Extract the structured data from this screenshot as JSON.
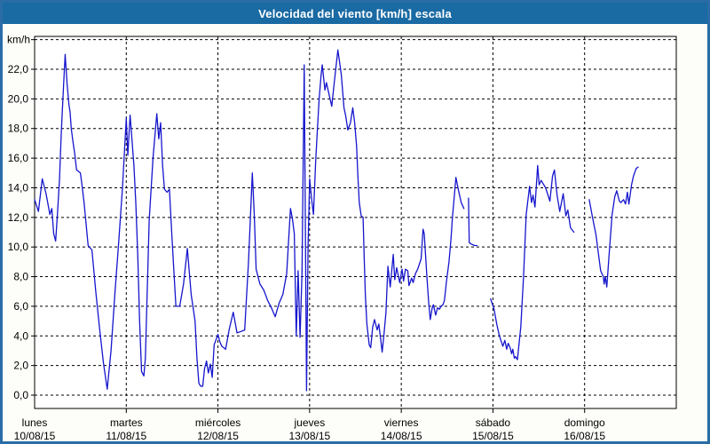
{
  "window": {
    "title": "Velocidad del viento [km/h] escala"
  },
  "colors": {
    "header_bg": "#1a6aa3",
    "frame_border": "#2a6da6",
    "plot_bg": "#ffffff",
    "plot_frame": "#000000",
    "grid": "#000000",
    "line": "#1515cd",
    "text": "#000000",
    "title_text": "#ffffff"
  },
  "chart_data": {
    "type": "line",
    "title": "Velocidad del viento [km/h] escala",
    "ylabel": "km/h",
    "grid": "dashed",
    "legend_position": "none",
    "y_axis": {
      "min": 0,
      "max": 24,
      "tick_step": 2,
      "tick_labels": [
        "0,0",
        "2,0",
        "4,0",
        "6,0",
        "8,0",
        "10,0",
        "12,0",
        "14,0",
        "16,0",
        "18,0",
        "20,0",
        "22,0"
      ],
      "unit_label": "km/h"
    },
    "x_axis": {
      "hours_per_day": 24,
      "days": [
        {
          "name": "lunes",
          "date": "10/08/15"
        },
        {
          "name": "martes",
          "date": "11/08/15"
        },
        {
          "name": "miércoles",
          "date": "12/08/15"
        },
        {
          "name": "jueves",
          "date": "13/08/15"
        },
        {
          "name": "viernes",
          "date": "14/08/15"
        },
        {
          "name": "sábado",
          "date": "15/08/15"
        },
        {
          "name": "domingo",
          "date": "16/08/15"
        }
      ]
    },
    "series": [
      {
        "name": "Velocidad del viento",
        "unit": "km/h",
        "points_hours_kmh": [
          [
            0,
            13.2
          ],
          [
            1,
            12.4
          ],
          [
            2,
            14.6
          ],
          [
            3,
            13.6
          ],
          [
            4,
            12.2
          ],
          [
            4.5,
            12.6
          ],
          [
            5,
            10.9
          ],
          [
            5.5,
            10.4
          ],
          [
            6,
            12.3
          ],
          [
            6.5,
            14.5
          ],
          [
            7,
            17.8
          ],
          [
            7.5,
            20.5
          ],
          [
            8,
            23.0
          ],
          [
            8.5,
            21.0
          ],
          [
            9,
            19.6
          ],
          [
            9.3,
            19.1
          ],
          [
            9.6,
            18.0
          ],
          [
            10,
            17.2
          ],
          [
            10.5,
            16.3
          ],
          [
            11,
            15.2
          ],
          [
            12,
            15.0
          ],
          [
            12.5,
            14.0
          ],
          [
            13,
            12.9
          ],
          [
            13.5,
            11.5
          ],
          [
            14,
            10.1
          ],
          [
            15,
            9.8
          ],
          [
            16,
            7.0
          ],
          [
            17,
            4.5
          ],
          [
            18,
            2.2
          ],
          [
            19,
            0.4
          ],
          [
            20,
            3.0
          ],
          [
            21,
            6.8
          ],
          [
            22,
            10.3
          ],
          [
            23,
            14.0
          ],
          [
            24,
            18.7
          ],
          [
            24.4,
            16.2
          ],
          [
            25,
            18.9
          ],
          [
            26,
            15.5
          ],
          [
            26.5,
            13.0
          ],
          [
            27,
            9.5
          ],
          [
            27.5,
            5.0
          ],
          [
            28,
            1.6
          ],
          [
            28.6,
            1.3
          ],
          [
            29,
            2.5
          ],
          [
            30,
            11.8
          ],
          [
            31,
            16.0
          ],
          [
            32,
            19.0
          ],
          [
            32.5,
            17.3
          ],
          [
            33,
            18.4
          ],
          [
            33.5,
            15.5
          ],
          [
            34,
            13.9
          ],
          [
            34.7,
            13.7
          ],
          [
            35.3,
            13.9
          ],
          [
            36,
            10.5
          ],
          [
            37,
            6.0
          ],
          [
            38,
            6.0
          ],
          [
            39,
            7.5
          ],
          [
            40,
            9.9
          ],
          [
            41,
            6.8
          ],
          [
            42,
            5.0
          ],
          [
            42.5,
            2.5
          ],
          [
            43,
            0.8
          ],
          [
            43.5,
            0.6
          ],
          [
            44,
            0.6
          ],
          [
            44.5,
            1.8
          ],
          [
            45,
            2.3
          ],
          [
            45.5,
            1.5
          ],
          [
            46,
            2.1
          ],
          [
            46.5,
            1.2
          ],
          [
            47,
            3.4
          ],
          [
            48,
            4.1
          ],
          [
            48.5,
            3.6
          ],
          [
            49,
            3.3
          ],
          [
            50,
            3.1
          ],
          [
            51,
            4.5
          ],
          [
            52,
            5.6
          ],
          [
            53,
            4.2
          ],
          [
            54,
            4.3
          ],
          [
            55,
            4.4
          ],
          [
            56,
            9.0
          ],
          [
            57,
            15.0
          ],
          [
            57.5,
            12.2
          ],
          [
            58,
            8.5
          ],
          [
            59,
            7.5
          ],
          [
            60,
            7.1
          ],
          [
            61,
            6.4
          ],
          [
            62,
            5.9
          ],
          [
            63,
            5.3
          ],
          [
            64,
            6.2
          ],
          [
            65,
            6.8
          ],
          [
            66,
            8.2
          ],
          [
            67,
            12.6
          ],
          [
            67.5,
            11.9
          ],
          [
            68,
            10.9
          ],
          [
            68.5,
            4.0
          ],
          [
            69,
            8.4
          ],
          [
            69.5,
            3.9
          ],
          [
            70,
            8.3
          ],
          [
            70.6,
            22.3
          ],
          [
            71.2,
            0.3
          ],
          [
            71.6,
            10.0
          ],
          [
            72,
            14.6
          ],
          [
            72.5,
            13.3
          ],
          [
            73,
            12.2
          ],
          [
            73.6,
            15.8
          ],
          [
            74,
            17.8
          ],
          [
            74.5,
            20.0
          ],
          [
            75,
            21.6
          ],
          [
            75.3,
            22.3
          ],
          [
            76,
            20.6
          ],
          [
            76.4,
            21.1
          ],
          [
            77,
            20.4
          ],
          [
            77.8,
            19.5
          ],
          [
            78.5,
            21.2
          ],
          [
            79.4,
            23.3
          ],
          [
            80,
            22.2
          ],
          [
            80.3,
            21.6
          ],
          [
            81,
            19.4
          ],
          [
            81.5,
            18.8
          ],
          [
            82,
            17.9
          ],
          [
            82.7,
            18.4
          ],
          [
            83.3,
            19.4
          ],
          [
            83.8,
            18.4
          ],
          [
            84.3,
            16.8
          ],
          [
            84.6,
            15.0
          ],
          [
            85,
            13.0
          ],
          [
            85.5,
            12.1
          ],
          [
            86,
            12.0
          ],
          [
            86.3,
            9.2
          ],
          [
            86.6,
            6.7
          ],
          [
            87,
            4.8
          ],
          [
            87.6,
            3.4
          ],
          [
            88,
            3.2
          ],
          [
            88.5,
            4.6
          ],
          [
            89,
            5.1
          ],
          [
            89.7,
            4.4
          ],
          [
            90.1,
            4.8
          ],
          [
            90.6,
            3.8
          ],
          [
            91,
            2.9
          ],
          [
            91.5,
            4.2
          ],
          [
            92,
            5.6
          ],
          [
            92.5,
            8.7
          ],
          [
            93.1,
            7.3
          ],
          [
            93.9,
            9.5
          ],
          [
            94.3,
            7.8
          ],
          [
            94.8,
            8.6
          ],
          [
            95.6,
            7.6
          ],
          [
            96.2,
            8.5
          ],
          [
            96.6,
            7.7
          ],
          [
            97.1,
            8.5
          ],
          [
            97.7,
            8.4
          ],
          [
            98,
            7.4
          ],
          [
            98.7,
            7.9
          ],
          [
            99.1,
            7.6
          ],
          [
            99.7,
            8.2
          ],
          [
            100.3,
            8.5
          ],
          [
            101.2,
            9.2
          ],
          [
            101.7,
            11.2
          ],
          [
            102,
            10.9
          ],
          [
            102.7,
            8.0
          ],
          [
            103.2,
            6.2
          ],
          [
            103.6,
            5.1
          ],
          [
            104.1,
            5.9
          ],
          [
            104.4,
            6.1
          ],
          [
            105,
            5.4
          ],
          [
            105.5,
            5.9
          ],
          [
            106,
            5.8
          ],
          [
            106.4,
            6.0
          ],
          [
            106.9,
            6.1
          ],
          [
            107.3,
            6.4
          ],
          [
            107.8,
            7.6
          ],
          [
            108.5,
            9.0
          ],
          [
            109,
            10.5
          ],
          [
            109.4,
            12.0
          ],
          [
            109.9,
            13.5
          ],
          [
            110.3,
            14.7
          ],
          [
            111,
            13.8
          ],
          [
            111.7,
            13.0
          ],
          [
            112.4,
            12.6
          ],
          null,
          [
            113.6,
            13.3
          ],
          [
            113.8,
            10.3
          ],
          [
            114.3,
            10.2
          ],
          [
            115.2,
            10.1
          ],
          [
            115.8,
            10.1
          ],
          null,
          [
            119.4,
            6.5
          ],
          [
            120.3,
            5.8
          ],
          [
            121,
            4.8
          ],
          [
            121.7,
            4.0
          ],
          [
            122.6,
            3.3
          ],
          [
            123.1,
            3.7
          ],
          [
            123.6,
            3.1
          ],
          [
            124,
            3.5
          ],
          [
            124.5,
            3.2
          ],
          [
            124.9,
            2.8
          ],
          [
            125.2,
            3.1
          ],
          [
            125.6,
            2.5
          ],
          [
            125.9,
            2.6
          ],
          [
            126.4,
            2.4
          ],
          [
            127.3,
            4.6
          ],
          [
            128,
            8.0
          ],
          [
            128.7,
            12.2
          ],
          [
            129.6,
            14.1
          ],
          [
            130.1,
            13.0
          ],
          [
            130.5,
            13.5
          ],
          [
            131,
            12.7
          ],
          [
            131.7,
            15.5
          ],
          [
            132.1,
            14.2
          ],
          [
            132.6,
            14.5
          ],
          [
            133.3,
            14.2
          ],
          [
            133.8,
            14.0
          ],
          [
            134.9,
            13.1
          ],
          [
            135.6,
            14.8
          ],
          [
            136.1,
            15.2
          ],
          [
            136.8,
            13.5
          ],
          [
            137.5,
            12.4
          ],
          [
            138.4,
            13.6
          ],
          [
            139.1,
            12.1
          ],
          [
            139.6,
            12.5
          ],
          [
            140.3,
            11.3
          ],
          [
            141.2,
            11.0
          ],
          null,
          [
            145.2,
            13.2
          ],
          [
            146,
            12.1
          ],
          [
            147,
            10.8
          ],
          [
            147.7,
            9.4
          ],
          [
            148.2,
            8.4
          ],
          [
            148.9,
            8.0
          ],
          [
            149.1,
            7.5
          ],
          [
            149.4,
            8.0
          ],
          [
            149.8,
            7.3
          ],
          [
            150.5,
            9.8
          ],
          [
            151.2,
            12.2
          ],
          [
            151.9,
            13.4
          ],
          [
            152.4,
            13.8
          ],
          [
            153.1,
            13.1
          ],
          [
            153.5,
            13.0
          ],
          [
            154.2,
            13.2
          ],
          [
            154.7,
            12.9
          ],
          [
            155.2,
            13.7
          ],
          [
            155.6,
            12.9
          ],
          [
            156.3,
            14.2
          ],
          [
            156.8,
            14.8
          ],
          [
            157.5,
            15.3
          ],
          [
            158,
            15.4
          ]
        ]
      }
    ]
  }
}
